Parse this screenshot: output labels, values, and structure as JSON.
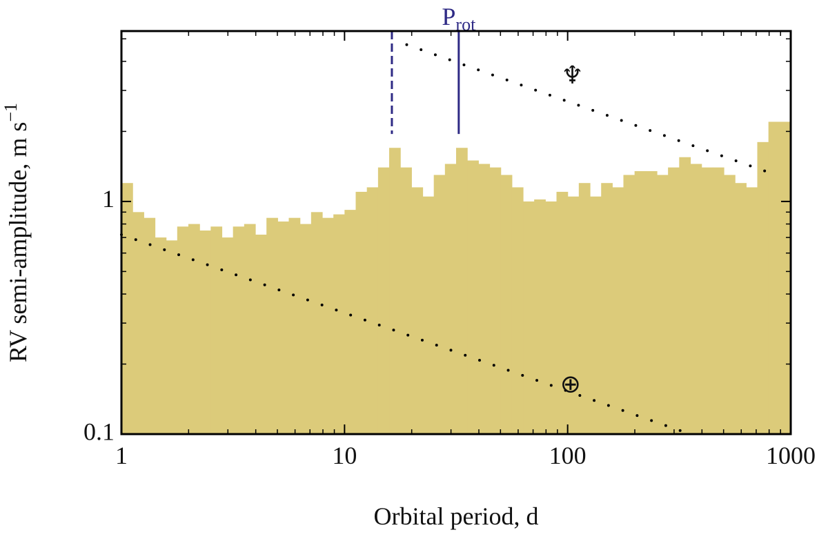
{
  "chart_data": {
    "type": "histogram",
    "xlabel": "Orbital period, d",
    "ylabel": "RV semi-amplitude, m s",
    "ylabel_sup": "−1",
    "color": "#dccb7a",
    "xscale": "log",
    "yscale": "log",
    "xlim": [
      1,
      1000
    ],
    "ylim": [
      0.1,
      5.4
    ],
    "xticks": [
      1,
      10,
      100,
      1000
    ],
    "yticks": [
      0.1,
      1
    ],
    "xminor_ticks": [
      2,
      3,
      4,
      5,
      6,
      7,
      8,
      9,
      20,
      30,
      40,
      50,
      60,
      70,
      80,
      90,
      200,
      300,
      400,
      500,
      600,
      700,
      800,
      900
    ],
    "yminor_ticks": [
      0.2,
      0.3,
      0.4,
      0.5,
      0.6,
      0.7,
      0.8,
      0.9,
      2,
      3,
      4,
      5
    ],
    "bins": [
      1,
      1.122,
      1.259,
      1.413,
      1.585,
      1.778,
      1.995,
      2.239,
      2.512,
      2.818,
      3.162,
      3.548,
      3.981,
      4.467,
      5.012,
      5.623,
      6.31,
      7.079,
      7.943,
      8.913,
      10,
      11.22,
      12.59,
      14.13,
      15.85,
      17.78,
      19.95,
      22.39,
      25.12,
      28.18,
      31.62,
      35.48,
      39.81,
      44.67,
      50.12,
      56.23,
      63.1,
      70.79,
      79.43,
      89.13,
      100,
      112.2,
      125.9,
      141.3,
      158.5,
      177.8,
      199.5,
      223.9,
      251.2,
      281.8,
      316.2,
      354.8,
      398.1,
      446.7,
      501.2,
      562.3,
      631,
      707.9,
      794.3,
      891.3,
      1000
    ],
    "values": [
      1.2,
      0.9,
      0.85,
      0.7,
      0.68,
      0.78,
      0.8,
      0.75,
      0.78,
      0.7,
      0.78,
      0.8,
      0.72,
      0.85,
      0.82,
      0.85,
      0.8,
      0.9,
      0.85,
      0.88,
      0.92,
      1.1,
      1.15,
      1.4,
      1.7,
      1.4,
      1.15,
      1.05,
      1.3,
      1.45,
      1.7,
      1.5,
      1.45,
      1.4,
      1.3,
      1.15,
      1.0,
      1.02,
      1.0,
      1.1,
      1.05,
      1.2,
      1.05,
      1.2,
      1.15,
      1.3,
      1.35,
      1.35,
      1.3,
      1.4,
      1.55,
      1.45,
      1.4,
      1.4,
      1.3,
      1.2,
      1.15,
      1.8,
      2.2,
      2.2
    ],
    "lines": [
      {
        "name": "Earth",
        "x": [
          1,
          354
        ],
        "y": [
          0.72,
          0.1
        ],
        "symbol": "⊕",
        "symbol_x": 103,
        "symbol_y": 0.16
      },
      {
        "name": "Neptune",
        "x": [
          19,
          803
        ],
        "y": [
          4.72,
          1.33
        ],
        "symbol": "♆",
        "symbol_x": 105,
        "symbol_y": 3.4
      }
    ],
    "marker_color": "#2e2a85",
    "markers": [
      {
        "x": 16.3,
        "y_end": 1.95,
        "style": "dashed"
      },
      {
        "x": 32.5,
        "y_end": 1.95,
        "style": "solid"
      }
    ],
    "marker_label": "P",
    "marker_label_sub": "rot"
  }
}
